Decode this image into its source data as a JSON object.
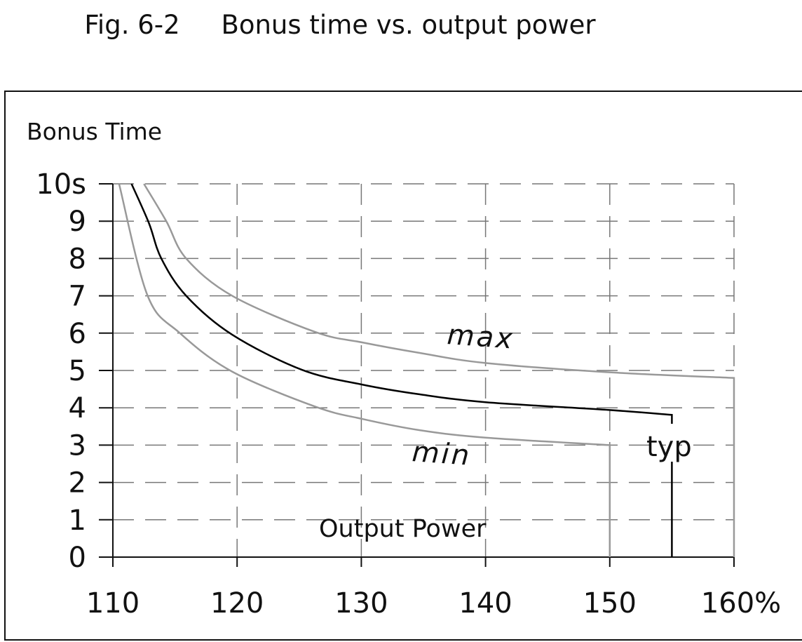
{
  "chart_data": {
    "type": "line",
    "title": "Fig. 6-2     Bonus time vs. output power",
    "xlabel": "Output Power",
    "ylabel": "Bonus Time",
    "xlim": [
      110,
      160
    ],
    "ylim": [
      0,
      10
    ],
    "x_ticks": [
      "110",
      "120",
      "130",
      "140",
      "150",
      "160%"
    ],
    "y_ticks": [
      "0",
      "1",
      "2",
      "3",
      "4",
      "5",
      "6",
      "7",
      "8",
      "9",
      "10s"
    ],
    "grid": true,
    "series": [
      {
        "name": "min",
        "color": "#999999",
        "x": [
          110.5,
          112.8,
          115.4,
          119.6,
          126.3,
          130.1,
          134.7,
          140,
          150,
          150
        ],
        "y": [
          10,
          7.0,
          6.0,
          4.97,
          4.03,
          3.7,
          3.4,
          3.2,
          3.0,
          0
        ]
      },
      {
        "name": "typ",
        "color": "#000000",
        "x": [
          111.5,
          112.9,
          113.9,
          115.9,
          119.6,
          125.2,
          130.1,
          134.7,
          140,
          150,
          155,
          155
        ],
        "y": [
          10,
          8.95,
          8.0,
          7.0,
          5.96,
          5.02,
          4.62,
          4.36,
          4.15,
          3.94,
          3.81,
          0
        ]
      },
      {
        "name": "max",
        "color": "#999999",
        "x": [
          112.5,
          114.3,
          115.9,
          119.6,
          126.3,
          130.1,
          134.7,
          140,
          150,
          160,
          160
        ],
        "y": [
          10,
          9.0,
          8.0,
          7.0,
          6.03,
          5.75,
          5.47,
          5.2,
          4.95,
          4.8,
          0
        ]
      }
    ]
  }
}
